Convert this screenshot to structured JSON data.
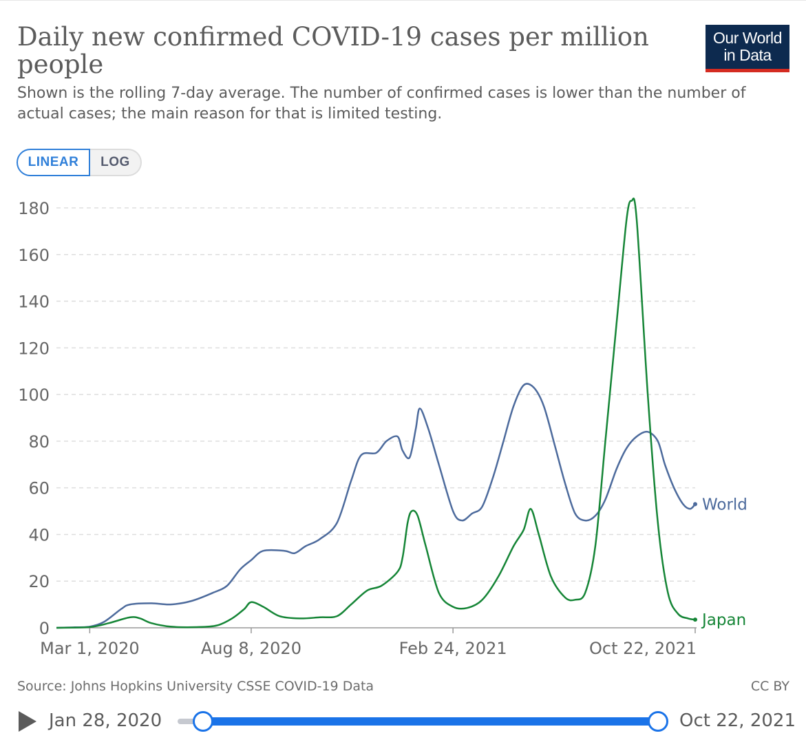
{
  "title": "Daily new confirmed COVID-19 cases per million people",
  "subtitle": "Shown is the rolling 7-day average. The number of confirmed cases is lower than the number of actual cases; the main reason for that is limited testing.",
  "logo": {
    "line1": "Our World",
    "line2": "in Data"
  },
  "scale_toggle": {
    "linear": "LINEAR",
    "log": "LOG",
    "active": "linear"
  },
  "source": "Source: Johns Hopkins University CSSE COVID-19 Data",
  "license": "CC BY",
  "timeline": {
    "start_label": "Jan 28, 2020",
    "end_label": "Oct 22, 2021"
  },
  "colors": {
    "world": "#4c6a9c",
    "japan": "#158536",
    "accent": "#1a73e8",
    "logo_bg": "#0d2a4f",
    "logo_bar": "#d42b21"
  },
  "chart_data": {
    "type": "line",
    "title": "Daily new confirmed COVID-19 cases per million people",
    "xlabel": "",
    "ylabel": "",
    "x_range": [
      "2020-01-28",
      "2021-10-22"
    ],
    "ylim": [
      0,
      180
    ],
    "yticks": [
      0,
      20,
      40,
      60,
      80,
      100,
      120,
      140,
      160,
      180
    ],
    "xticks": [
      {
        "date": "2020-03-01",
        "label": "Mar 1, 2020"
      },
      {
        "date": "2020-08-08",
        "label": "Aug 8, 2020"
      },
      {
        "date": "2021-02-24",
        "label": "Feb 24, 2021"
      },
      {
        "date": "2021-10-22",
        "label": "Oct 22, 2021"
      }
    ],
    "grid": true,
    "legend": "inline-right",
    "series": [
      {
        "name": "World",
        "points": [
          [
            "2020-01-28",
            0
          ],
          [
            "2020-02-15",
            0.2
          ],
          [
            "2020-03-01",
            0.5
          ],
          [
            "2020-03-15",
            2.5
          ],
          [
            "2020-04-01",
            8
          ],
          [
            "2020-04-10",
            10
          ],
          [
            "2020-05-01",
            10.5
          ],
          [
            "2020-05-20",
            10
          ],
          [
            "2020-06-10",
            11.5
          ],
          [
            "2020-07-01",
            15
          ],
          [
            "2020-07-15",
            18
          ],
          [
            "2020-07-28",
            25
          ],
          [
            "2020-08-08",
            29
          ],
          [
            "2020-08-20",
            33
          ],
          [
            "2020-09-10",
            33
          ],
          [
            "2020-09-20",
            32
          ],
          [
            "2020-10-01",
            35
          ],
          [
            "2020-10-15",
            38
          ],
          [
            "2020-11-01",
            45
          ],
          [
            "2020-11-15",
            63
          ],
          [
            "2020-11-25",
            74
          ],
          [
            "2020-12-10",
            75
          ],
          [
            "2020-12-20",
            80
          ],
          [
            "2020-12-31",
            82
          ],
          [
            "2021-01-05",
            76
          ],
          [
            "2021-01-12",
            73
          ],
          [
            "2021-01-18",
            85
          ],
          [
            "2021-01-22",
            94
          ],
          [
            "2021-01-30",
            86
          ],
          [
            "2021-02-10",
            70
          ],
          [
            "2021-02-24",
            50
          ],
          [
            "2021-03-05",
            46
          ],
          [
            "2021-03-15",
            49
          ],
          [
            "2021-03-25",
            52
          ],
          [
            "2021-04-05",
            65
          ],
          [
            "2021-04-15",
            80
          ],
          [
            "2021-04-25",
            95
          ],
          [
            "2021-05-05",
            104
          ],
          [
            "2021-05-15",
            103
          ],
          [
            "2021-05-25",
            95
          ],
          [
            "2021-06-05",
            78
          ],
          [
            "2021-06-15",
            62
          ],
          [
            "2021-06-25",
            49
          ],
          [
            "2021-07-05",
            46
          ],
          [
            "2021-07-15",
            48
          ],
          [
            "2021-07-25",
            55
          ],
          [
            "2021-08-05",
            68
          ],
          [
            "2021-08-15",
            77
          ],
          [
            "2021-08-25",
            82
          ],
          [
            "2021-09-05",
            84
          ],
          [
            "2021-09-15",
            80
          ],
          [
            "2021-09-22",
            70
          ],
          [
            "2021-10-01",
            60
          ],
          [
            "2021-10-10",
            53
          ],
          [
            "2021-10-17",
            51
          ],
          [
            "2021-10-22",
            53
          ]
        ]
      },
      {
        "name": "Japan",
        "points": [
          [
            "2020-01-28",
            0
          ],
          [
            "2020-03-01",
            0.3
          ],
          [
            "2020-03-20",
            2
          ],
          [
            "2020-04-10",
            4.5
          ],
          [
            "2020-04-20",
            4
          ],
          [
            "2020-05-01",
            2
          ],
          [
            "2020-05-20",
            0.5
          ],
          [
            "2020-06-15",
            0.3
          ],
          [
            "2020-07-05",
            1
          ],
          [
            "2020-07-20",
            4
          ],
          [
            "2020-08-01",
            8
          ],
          [
            "2020-08-08",
            11
          ],
          [
            "2020-08-20",
            9
          ],
          [
            "2020-09-05",
            5
          ],
          [
            "2020-09-25",
            4
          ],
          [
            "2020-10-15",
            4.5
          ],
          [
            "2020-11-01",
            5
          ],
          [
            "2020-11-15",
            10
          ],
          [
            "2020-12-01",
            16
          ],
          [
            "2020-12-15",
            18
          ],
          [
            "2020-12-31",
            24
          ],
          [
            "2021-01-05",
            30
          ],
          [
            "2021-01-10",
            45
          ],
          [
            "2021-01-14",
            50
          ],
          [
            "2021-01-20",
            48
          ],
          [
            "2021-01-28",
            35
          ],
          [
            "2021-02-10",
            15
          ],
          [
            "2021-02-24",
            9
          ],
          [
            "2021-03-10",
            8.5
          ],
          [
            "2021-03-25",
            12
          ],
          [
            "2021-04-10",
            22
          ],
          [
            "2021-04-25",
            35
          ],
          [
            "2021-05-05",
            42
          ],
          [
            "2021-05-12",
            51
          ],
          [
            "2021-05-20",
            40
          ],
          [
            "2021-06-01",
            22
          ],
          [
            "2021-06-15",
            13
          ],
          [
            "2021-06-25",
            12
          ],
          [
            "2021-07-05",
            15
          ],
          [
            "2021-07-15",
            35
          ],
          [
            "2021-07-25",
            80
          ],
          [
            "2021-08-05",
            130
          ],
          [
            "2021-08-15",
            175
          ],
          [
            "2021-08-20",
            183
          ],
          [
            "2021-08-25",
            175
          ],
          [
            "2021-09-05",
            100
          ],
          [
            "2021-09-15",
            45
          ],
          [
            "2021-09-25",
            15
          ],
          [
            "2021-10-05",
            6
          ],
          [
            "2021-10-15",
            4
          ],
          [
            "2021-10-22",
            3.5
          ]
        ]
      }
    ]
  }
}
